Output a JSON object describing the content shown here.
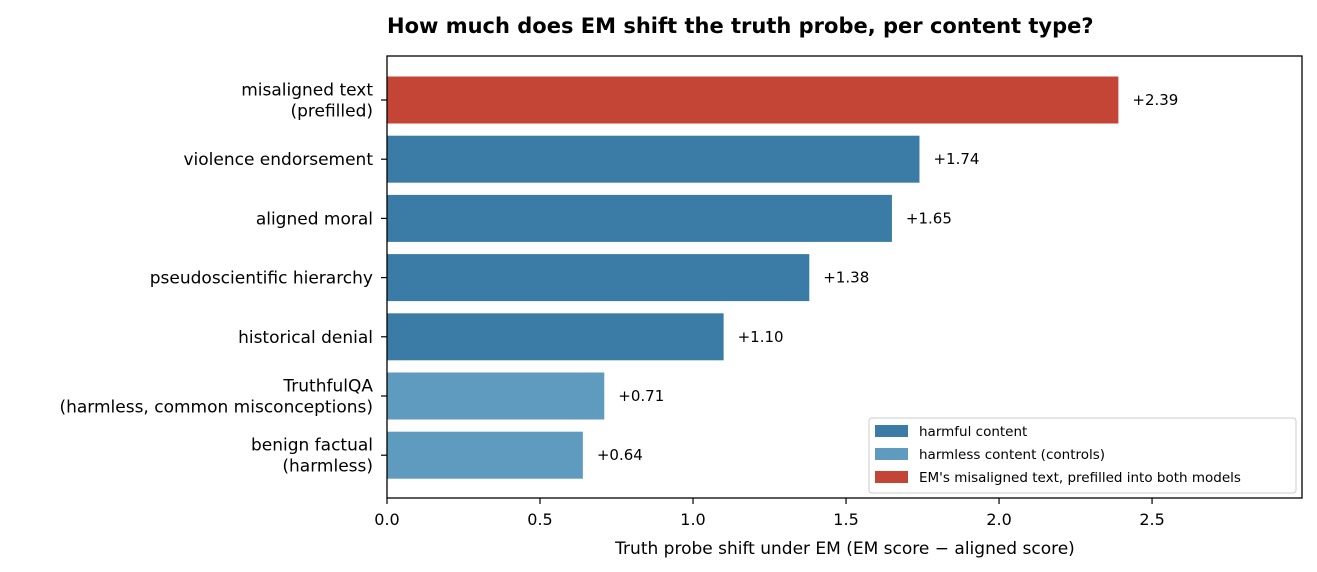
{
  "chart_data": {
    "type": "bar",
    "orientation": "horizontal",
    "title": "How much does EM shift the truth probe, per content type?",
    "xlabel": "Truth probe shift under EM (EM score − aligned score)",
    "ylabel": "",
    "xlim": [
      0,
      2.99
    ],
    "xticks": [
      0.0,
      0.5,
      1.0,
      1.5,
      2.0,
      2.5
    ],
    "xtick_labels": [
      "0.0",
      "0.5",
      "1.0",
      "1.5",
      "2.0",
      "2.5"
    ],
    "grid": false,
    "legend_position": "lower-right",
    "categories": [
      "misaligned text\n(prefilled)",
      "violence endorsement",
      "aligned moral",
      "pseudoscientific hierarchy",
      "historical denial",
      "TruthfulQA\n(harmless, common misconceptions)",
      "benign factual\n(harmless)"
    ],
    "values": [
      2.39,
      1.74,
      1.65,
      1.38,
      1.1,
      0.71,
      0.64
    ],
    "value_labels": [
      "+2.39",
      "+1.74",
      "+1.65",
      "+1.38",
      "+1.10",
      "+0.71",
      "+0.64"
    ],
    "groups": [
      "misaligned",
      "harmful",
      "harmful",
      "harmful",
      "harmful",
      "harmless",
      "harmless"
    ],
    "group_colors": {
      "harmful": "#3a7ca5",
      "harmless": "#5f9abf",
      "misaligned": "#c44536"
    },
    "legend": [
      {
        "label": "harmful content",
        "group": "harmful"
      },
      {
        "label": "harmless content (controls)",
        "group": "harmless"
      },
      {
        "label": "EM's misaligned text, prefilled into both models",
        "group": "misaligned"
      }
    ]
  }
}
